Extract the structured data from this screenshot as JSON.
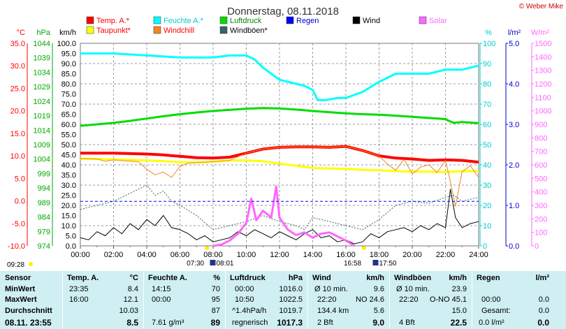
{
  "chart_data": {
    "type": "line",
    "title": "Donnerstag, 08.11.2018",
    "copyright": "© Weber Mike",
    "x_ticks": [
      "00:00",
      "02:00",
      "04:00",
      "06:00",
      "08:00",
      "10:00",
      "12:00",
      "14:00",
      "16:00",
      "18:00",
      "20:00",
      "22:00",
      "24:00"
    ],
    "axes": {
      "temp": {
        "unit": "°C",
        "color": "#ff0000",
        "ticks": [
          "35.0",
          "30.0",
          "25.0",
          "20.0",
          "15.0",
          "10.0",
          "5.0",
          "0.0",
          "-5.0",
          "-10.0"
        ],
        "ylim": [
          -10,
          35
        ]
      },
      "pressure": {
        "unit": "hPa",
        "color": "#00aa00",
        "ticks": [
          "1044",
          "1039",
          "1034",
          "1029",
          "1024",
          "1019",
          "1014",
          "1009",
          "1004",
          "999",
          "994",
          "989",
          "984",
          "979",
          "974"
        ],
        "ylim": [
          974,
          1044
        ]
      },
      "wind": {
        "unit": "km/h",
        "color": "#000000",
        "ticks": [
          "100.0",
          "95.0",
          "90.0",
          "85.0",
          "80.0",
          "75.0",
          "70.0",
          "65.0",
          "60.0",
          "55.0",
          "50.0",
          "45.0",
          "40.0",
          "35.0",
          "30.0",
          "25.0",
          "20.0",
          "15.0",
          "10.0",
          "5.0",
          "0.0"
        ],
        "ylim": [
          0,
          100
        ]
      },
      "humidity": {
        "unit": "%",
        "color": "#00cccc",
        "ticks": [
          "100",
          "90",
          "80",
          "70",
          "60",
          "50",
          "40",
          "30",
          "20",
          "10",
          "0"
        ],
        "ylim": [
          0,
          100
        ]
      },
      "rain": {
        "unit": "l/m²",
        "color": "#0000cc",
        "ticks": [
          "5.0",
          "4.0",
          "3.0",
          "2.0",
          "1.0",
          "0.0"
        ],
        "ylim": [
          0,
          5
        ]
      },
      "solar": {
        "unit": "W/m²",
        "color": "#ff66ff",
        "ticks": [
          "1500",
          "1400",
          "1300",
          "1200",
          "1100",
          "1000",
          "900",
          "800",
          "700",
          "600",
          "500",
          "400",
          "300",
          "200",
          "100",
          "0"
        ],
        "ylim": [
          0,
          1500
        ]
      }
    },
    "legend": [
      {
        "label": "Temp. A.*",
        "color": "#ff0000",
        "text_color": "#ff0000"
      },
      {
        "label": "Feuchte A.*",
        "color": "#00ffff",
        "text_color": "#00cccc"
      },
      {
        "label": "Luftdruck",
        "color": "#00dd00",
        "text_color": "#008800"
      },
      {
        "label": "Regen",
        "color": "#0000ff",
        "text_color": "#0000cc"
      },
      {
        "label": "Wind",
        "color": "#000000",
        "text_color": "#000000"
      },
      {
        "label": "Solar",
        "color": "#ff66ff",
        "text_color": "#ff66ff"
      },
      {
        "label": "Taupunkt*",
        "color": "#ffff00",
        "text_color": "#ff0000"
      },
      {
        "label": "Windchill",
        "color": "#ee8822",
        "text_color": "#ff0000"
      },
      {
        "label": "Windböen*",
        "color": "#336666",
        "text_color": "#000000"
      }
    ],
    "series": [
      {
        "name": "Temp. A.*",
        "axis": "temp",
        "color": "#ff0000",
        "width": 4,
        "x": [
          0,
          1,
          2,
          3,
          4,
          5,
          6,
          7,
          8,
          9,
          10,
          11,
          12,
          13,
          14,
          15,
          16,
          17,
          18,
          19,
          20,
          21,
          22,
          23,
          24
        ],
        "y": [
          10.6,
          10.6,
          10.6,
          10.5,
          10.4,
          10.2,
          9.9,
          9.6,
          9.5,
          9.7,
          10.6,
          11.5,
          11.9,
          12.0,
          12.0,
          11.9,
          12.1,
          11.2,
          10.0,
          9.5,
          9.3,
          9.0,
          9.1,
          9.0,
          8.6
        ]
      },
      {
        "name": "Taupunkt*",
        "axis": "temp",
        "color": "#ffff00",
        "width": 3,
        "x": [
          0,
          1,
          2,
          3,
          4,
          5,
          6,
          7,
          8,
          9,
          10,
          11,
          12,
          13,
          14,
          15,
          16,
          17,
          18,
          19,
          20,
          21,
          22,
          23,
          24
        ],
        "y": [
          9.4,
          9.3,
          9.2,
          9.1,
          9.0,
          8.8,
          8.6,
          8.5,
          8.7,
          9.0,
          9.0,
          8.8,
          8.3,
          7.8,
          7.3,
          7.2,
          7.1,
          6.9,
          6.8,
          6.6,
          6.5,
          6.5,
          6.4,
          6.6,
          6.6
        ]
      },
      {
        "name": "Windchill",
        "axis": "temp",
        "color": "#ee8822",
        "width": 1,
        "x": [
          0,
          1,
          1.5,
          2,
          3,
          3.5,
          4,
          4.5,
          5,
          5.5,
          6,
          6.5,
          7,
          8,
          9,
          10,
          11,
          12,
          13,
          14,
          15,
          16,
          17,
          18,
          18.5,
          19,
          19.5,
          20,
          20.5,
          21,
          21.5,
          22,
          22.3,
          22.6,
          23,
          23.5,
          24
        ],
        "y": [
          9.4,
          9.3,
          8.8,
          9.1,
          8.8,
          8.7,
          7.0,
          5.8,
          6.4,
          5.2,
          7.6,
          8.4,
          8.5,
          8.7,
          9.0,
          10.6,
          11.5,
          11.9,
          12.0,
          12.0,
          11.9,
          12.1,
          11.2,
          10.0,
          8.2,
          6.8,
          9.2,
          6.0,
          7.5,
          8.0,
          6.3,
          9.0,
          4.2,
          -1.2,
          6.5,
          7.8,
          5.2
        ]
      },
      {
        "name": "Feuchte A.*",
        "axis": "humidity",
        "color": "#00ffff",
        "width": 3,
        "x": [
          0,
          2,
          4,
          6,
          8,
          9,
          10,
          10.5,
          11,
          11.5,
          12,
          12.5,
          13,
          13.5,
          14,
          14.3,
          14.8,
          15.5,
          16,
          17,
          18,
          19,
          20,
          21,
          22,
          23,
          24
        ],
        "y": [
          95,
          95,
          94,
          93,
          93,
          94,
          94,
          92,
          88,
          85,
          82,
          81,
          80,
          79,
          77,
          72,
          72,
          73,
          73,
          76,
          81,
          85,
          85,
          85,
          87,
          87,
          89
        ]
      },
      {
        "name": "Luftdruck",
        "axis": "pressure",
        "color": "#00dd00",
        "width": 3,
        "x": [
          0,
          1,
          2,
          3,
          4,
          5,
          6,
          7,
          8,
          9,
          10,
          11,
          12,
          13,
          14,
          15,
          16,
          17,
          18,
          19,
          20,
          21,
          22,
          22.2,
          22.5,
          23,
          24
        ],
        "y": [
          1015.5,
          1016.0,
          1016.5,
          1017.2,
          1018.0,
          1018.8,
          1019.5,
          1020.1,
          1020.6,
          1021.0,
          1021.4,
          1021.6,
          1021.5,
          1021.1,
          1020.6,
          1020.2,
          1019.8,
          1019.5,
          1019.3,
          1019.0,
          1018.6,
          1018.2,
          1017.8,
          1017.2,
          1016.5,
          1016.8,
          1016.4
        ]
      },
      {
        "name": "Windböen*",
        "axis": "wind",
        "color": "#336666",
        "width": 1,
        "dash": "2,2",
        "x": [
          0,
          1,
          2,
          3,
          3.5,
          4,
          4.5,
          5,
          5.5,
          6,
          7,
          8,
          9,
          10,
          11,
          12,
          13,
          13.5,
          14,
          15,
          16,
          17,
          18,
          19,
          20,
          21,
          22,
          22.5,
          23,
          23.5,
          24
        ],
        "y": [
          18,
          20,
          22,
          26,
          28,
          30,
          25,
          27,
          22,
          20,
          15,
          8,
          10,
          12,
          15,
          12,
          10,
          8,
          14,
          12,
          10,
          8,
          13,
          20,
          22,
          21,
          24,
          25,
          22,
          23,
          24
        ]
      },
      {
        "name": "Wind",
        "axis": "wind",
        "color": "#000000",
        "width": 1,
        "x": [
          0,
          0.5,
          1,
          1.5,
          2,
          2.5,
          3,
          3.5,
          4,
          4.5,
          5,
          5.5,
          6,
          6.5,
          7,
          7.5,
          8,
          8.5,
          9,
          9.5,
          10,
          10.5,
          11,
          11.5,
          12,
          12.5,
          13,
          13.5,
          14,
          14.5,
          15,
          15.5,
          16,
          16.5,
          17,
          17.5,
          18,
          18.5,
          19,
          19.5,
          20,
          20.5,
          21,
          21.5,
          22,
          22.3,
          22.6,
          23,
          23.5,
          24
        ],
        "y": [
          4,
          3,
          7,
          5,
          9,
          6,
          11,
          8,
          13,
          10,
          15,
          9,
          8,
          6,
          3,
          5,
          2,
          3,
          4,
          7,
          5,
          8,
          6,
          4,
          7,
          5,
          3,
          6,
          8,
          4,
          5,
          2,
          3,
          1,
          2,
          6,
          4,
          7,
          8,
          9,
          7,
          10,
          8,
          11,
          9,
          28,
          14,
          9,
          11,
          12
        ]
      },
      {
        "name": "Solar",
        "axis": "solar",
        "color": "#ff66ff",
        "width": 3,
        "x": [
          8,
          8.5,
          9,
          9.5,
          10,
          10.3,
          10.6,
          11,
          11.3,
          11.5,
          11.8,
          12,
          12.5,
          13,
          13.5,
          14,
          14.5,
          15,
          15.5,
          16,
          16.5
        ],
        "y": [
          0,
          10,
          40,
          90,
          170,
          350,
          190,
          260,
          230,
          210,
          440,
          210,
          120,
          80,
          100,
          60,
          90,
          100,
          70,
          40,
          0
        ]
      },
      {
        "name": "Regen",
        "axis": "rain",
        "color": "#0000ff",
        "width": 1,
        "dash": "4,3",
        "x": [
          0,
          24
        ],
        "y": [
          1.1,
          1.1
        ]
      }
    ],
    "sun_times": [
      {
        "label": "07:30",
        "time": 7.5,
        "kind": "sunrise"
      },
      {
        "label": "08:01",
        "time": 8.02,
        "kind": "sunrise-icon"
      },
      {
        "label": "16:58",
        "time": 16.97,
        "kind": "sunset"
      },
      {
        "label": "17:50",
        "time": 17.83,
        "kind": "sunset-icon"
      }
    ],
    "update_time": "09:28"
  },
  "summary": {
    "sensor": {
      "header": "Sensor",
      "rows": [
        "MinWert",
        "MaxWert",
        "Durchschnitt"
      ],
      "current": "08.11. 23:55"
    },
    "temp": {
      "header": "Temp. A.",
      "unit": "°C",
      "min_time": "23:35",
      "min": "8.4",
      "max_time": "16:00",
      "max": "12.1",
      "avg": "10.03",
      "current": "8.5"
    },
    "humidity": {
      "header": "Feuchte A.",
      "unit": "%",
      "min_time": "14:15",
      "min": "70",
      "max_time": "00:00",
      "max": "95",
      "avg": "87",
      "current_extra": "7.61 g/m³",
      "current": "89"
    },
    "pressure": {
      "header": "Luftdruck",
      "unit": "hPa",
      "min_time": "00:00",
      "min": "1016.0",
      "max_time": "10:50",
      "max": "1022.5",
      "avg_label": "^1.4hPa/h",
      "avg": "1019.7",
      "current_label": "regnerisch",
      "current": "1017.3"
    },
    "wind": {
      "header": "Wind",
      "unit": "km/h",
      "min_label": "Ø 10 min.",
      "min": "9.6",
      "max_time": "22:20",
      "max_dir": "NO 24.6",
      "avg_label": "134.4 km",
      "avg": "5.6",
      "current_label": "2 Bft",
      "current": "9.0"
    },
    "gust": {
      "header": "Windböen",
      "unit": "km/h",
      "min_label": "Ø 10 min.",
      "min": "23.9",
      "max_time": "22:20",
      "max_dir": "O-NO 45.1",
      "avg": "15.0",
      "current_label": "4 Bft",
      "current": "22.5"
    },
    "rain": {
      "header": "Regen",
      "unit": "l/m²",
      "max_time": "00:00",
      "max": "0.0",
      "avg_label": "Gesamt:",
      "avg": "0.0",
      "current_label": "0.0 l/m²",
      "current": "0.0"
    }
  }
}
